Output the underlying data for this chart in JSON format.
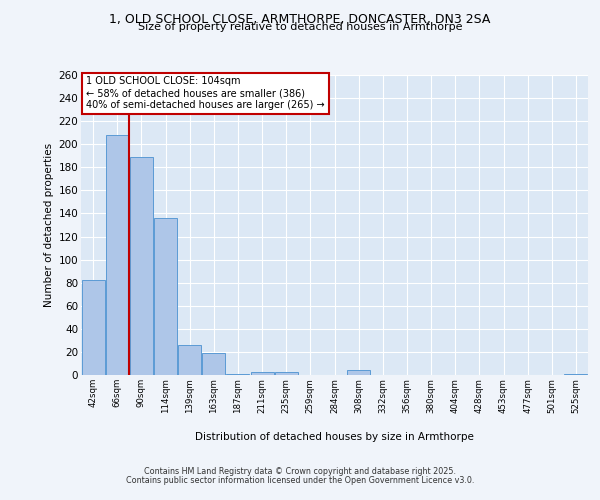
{
  "title_line1": "1, OLD SCHOOL CLOSE, ARMTHORPE, DONCASTER, DN3 2SA",
  "title_line2": "Size of property relative to detached houses in Armthorpe",
  "xlabel": "Distribution of detached houses by size in Armthorpe",
  "ylabel": "Number of detached properties",
  "categories": [
    "42sqm",
    "66sqm",
    "90sqm",
    "114sqm",
    "139sqm",
    "163sqm",
    "187sqm",
    "211sqm",
    "235sqm",
    "259sqm",
    "284sqm",
    "308sqm",
    "332sqm",
    "356sqm",
    "380sqm",
    "404sqm",
    "428sqm",
    "453sqm",
    "477sqm",
    "501sqm",
    "525sqm"
  ],
  "values": [
    82,
    208,
    189,
    136,
    26,
    19,
    1,
    3,
    3,
    0,
    0,
    4,
    0,
    0,
    0,
    0,
    0,
    0,
    0,
    0,
    1
  ],
  "bar_color": "#aec6e8",
  "bar_edge_color": "#5b9bd5",
  "vline_color": "#c00000",
  "annotation_text": "1 OLD SCHOOL CLOSE: 104sqm\n← 58% of detached houses are smaller (386)\n40% of semi-detached houses are larger (265) →",
  "annotation_box_color": "#ffffff",
  "annotation_box_edge": "#c00000",
  "ylim": [
    0,
    260
  ],
  "yticks": [
    0,
    20,
    40,
    60,
    80,
    100,
    120,
    140,
    160,
    180,
    200,
    220,
    240,
    260
  ],
  "background_color": "#dce8f5",
  "grid_color": "#ffffff",
  "fig_bg_color": "#f0f4fa",
  "footer_line1": "Contains HM Land Registry data © Crown copyright and database right 2025.",
  "footer_line2": "Contains public sector information licensed under the Open Government Licence v3.0."
}
